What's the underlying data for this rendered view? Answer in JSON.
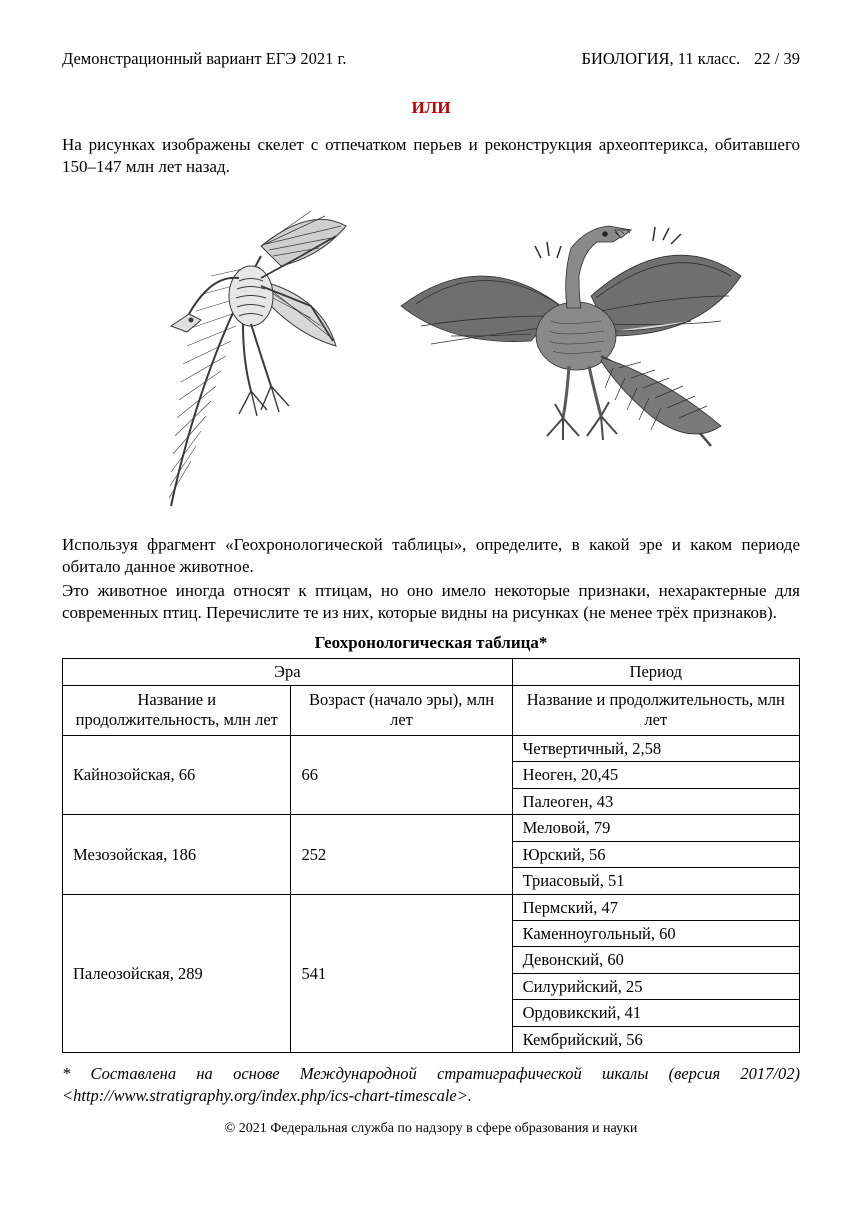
{
  "header": {
    "left": "Демонстрационный вариант ЕГЭ 2021 г.",
    "subject": "БИОЛОГИЯ, 11 класс.",
    "page": "22 / 39"
  },
  "or_label": "ИЛИ",
  "para1": "На рисунках изображены скелет с отпечатком перьев и реконструкция археоптерикса, обитавшего 150–147 млн лет назад.",
  "para2": "Используя фрагмент «Геохронологической таблицы», определите, в какой эре и каком периоде обитало данное животное.",
  "para3": "Это животное иногда относят к птицам, но оно имело некоторые признаки, нехарактерные для современных птиц. Перечислите те из них, которые видны на рисунках (не менее трёх признаков).",
  "table": {
    "title": "Геохронологическая таблица*",
    "head_era": "Эра",
    "head_period": "Период",
    "sub_name": "Название\nи продолжительность,\nмлн лет",
    "sub_age": "Возраст\n(начало эры), млн лет",
    "sub_period": "Название\nи продолжительность,\nмлн лет",
    "eras": [
      {
        "name": "Кайнозойская, 66",
        "age": "66",
        "periods": [
          "Четвертичный, 2,58",
          "Неоген, 20,45",
          "Палеоген, 43"
        ]
      },
      {
        "name": "Мезозойская, 186",
        "age": "252",
        "periods": [
          "Меловой, 79",
          "Юрский, 56",
          "Триасовый, 51"
        ]
      },
      {
        "name": "Палеозойская, 289",
        "age": "541",
        "periods": [
          "Пермский, 47",
          "Каменноугольный, 60",
          "Девонский, 60",
          "Силурийский, 25",
          "Ордовикский, 41",
          "Кембрийский, 56"
        ]
      }
    ]
  },
  "footnote_prefix": "* Составлена на основе Международной стратиграфической шкалы (версия 2017/02) ",
  "footnote_url": "<http://www.stratigraphy.org/index.php/ics-chart-timescale>.",
  "copyright": "© 2021 Федеральная служба по надзору в сфере образования и науки",
  "figure": {
    "description_left": "skeleton-with-feather-imprint",
    "description_right": "archaeopteryx-reconstruction",
    "stroke": "#3a3a3a",
    "fill_light": "#bdbdbd",
    "fill_mid": "#808080",
    "fill_dark": "#4a4a4a"
  }
}
